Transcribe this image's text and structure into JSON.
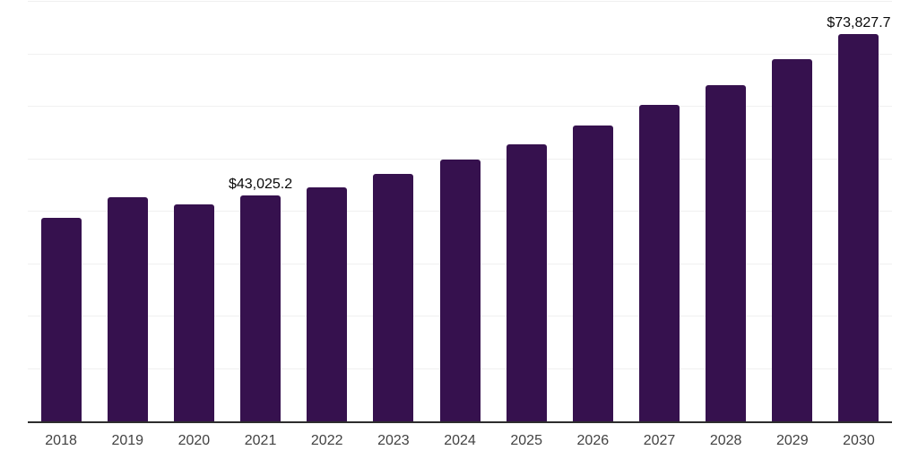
{
  "chart_data": {
    "type": "bar",
    "categories": [
      "2018",
      "2019",
      "2020",
      "2021",
      "2022",
      "2023",
      "2024",
      "2025",
      "2026",
      "2027",
      "2028",
      "2029",
      "2030"
    ],
    "values": [
      38800,
      42700,
      41300,
      43025.2,
      44600,
      47200,
      49900,
      52900,
      56400,
      60300,
      64100,
      69100,
      73827.7
    ],
    "annotations": [
      {
        "category": "2021",
        "text": "$43,025.2"
      },
      {
        "category": "2030",
        "text": "$73,827.7"
      }
    ],
    "title": "",
    "xlabel": "",
    "ylabel": "",
    "ylim": [
      0,
      80000
    ],
    "gridline_step": 10000,
    "grid": "horizontal",
    "legend": "none",
    "background_color": "#ffffff",
    "bar_color": "#36114E",
    "axis_line_color": "#2d2d2d",
    "gridline_color": "#f0f0f0",
    "tick_label_color": "#424242",
    "data_label_color": "#0a0a0a"
  }
}
